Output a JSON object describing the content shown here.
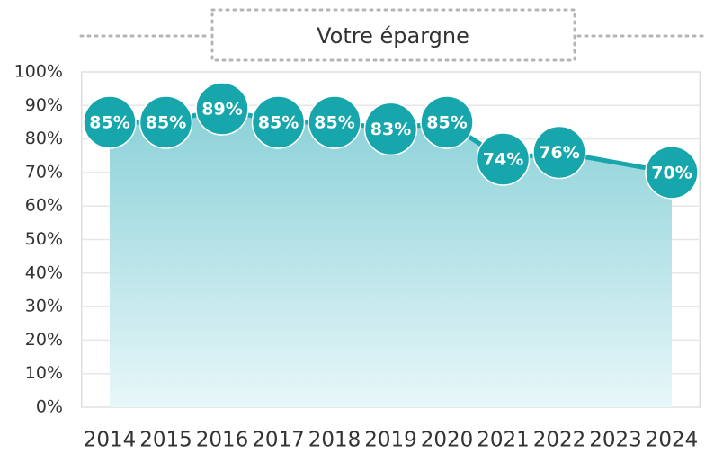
{
  "chart_data": {
    "type": "area-line",
    "title": "Votre épargne",
    "x": [
      2014,
      2015,
      2016,
      2017,
      2018,
      2019,
      2020,
      2021,
      2022,
      2024
    ],
    "values": [
      85,
      85,
      89,
      85,
      85,
      83,
      85,
      74,
      76,
      70
    ],
    "value_labels": [
      "85%",
      "85%",
      "89%",
      "85%",
      "85%",
      "83%",
      "85%",
      "74%",
      "76%",
      "70%"
    ],
    "color": "#17a6ab",
    "xlim": [
      2013.5,
      2024.5
    ],
    "xticks": [
      2014,
      2015,
      2016,
      2017,
      2018,
      2019,
      2020,
      2021,
      2022,
      2023,
      2024
    ],
    "ylim": [
      0,
      100
    ],
    "yticks": [
      {
        "value": 0,
        "label": "0%"
      },
      {
        "value": 10,
        "label": "10%"
      },
      {
        "value": 20,
        "label": "20%"
      },
      {
        "value": 30,
        "label": "30%"
      },
      {
        "value": 40,
        "label": "40%"
      },
      {
        "value": 50,
        "label": "50%"
      },
      {
        "value": 60,
        "label": "60%"
      },
      {
        "value": 70,
        "label": "70%"
      },
      {
        "value": 80,
        "label": "80%"
      },
      {
        "value": 90,
        "label": "90%"
      },
      {
        "value": 100,
        "label": "100%"
      }
    ],
    "grid": true
  }
}
